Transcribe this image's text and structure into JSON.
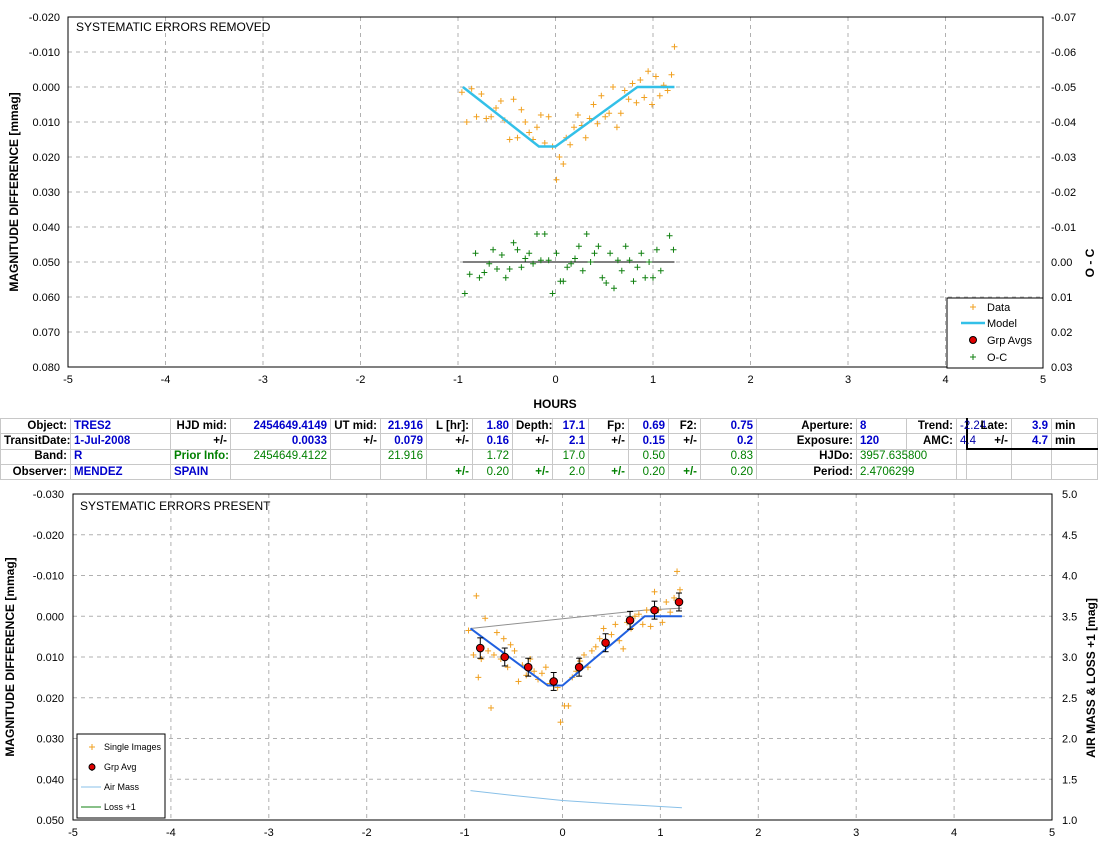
{
  "top_chart": {
    "title": "SYSTEMATIC ERRORS REMOVED",
    "ylabel": "MAGNITUDE DIFFERENCE [mmag]",
    "y2label": "O - C",
    "xlabel": "HOURS",
    "x_ticks": [
      "-5",
      "-4",
      "-3",
      "-2",
      "-1",
      "0",
      "1",
      "2",
      "3",
      "4",
      "5"
    ],
    "y_ticks": [
      "-0.020",
      "-0.010",
      "0.000",
      "0.010",
      "0.020",
      "0.030",
      "0.040",
      "0.050",
      "0.060",
      "0.070",
      "0.080"
    ],
    "y2_ticks": [
      "-0.07",
      "-0.06",
      "-0.05",
      "-0.04",
      "-0.03",
      "-0.02",
      "-0.01",
      "0.00",
      "0.01",
      "0.02",
      "0.03"
    ],
    "legend": [
      "Data",
      "Model",
      "Grp Avgs",
      "O-C"
    ]
  },
  "bottom_chart": {
    "title": "SYSTEMATIC ERRORS PRESENT",
    "ylabel": "MAGNITUDE DIFFERENCE [mmag]",
    "y2label": "AIR MASS & LOSS +1 [mag]",
    "x_ticks": [
      "-5",
      "-4",
      "-3",
      "-2",
      "-1",
      "0",
      "1",
      "2",
      "3",
      "4",
      "5"
    ],
    "y_ticks": [
      "-0.030",
      "-0.020",
      "-0.010",
      "0.000",
      "0.010",
      "0.020",
      "0.030",
      "0.040",
      "0.050"
    ],
    "y2_ticks": [
      "5.0",
      "4.5",
      "4.0",
      "3.5",
      "3.0",
      "2.5",
      "2.0",
      "1.5",
      "1.0"
    ],
    "legend": [
      "Single Images",
      "Grp Avg",
      "Air Mass",
      "Loss +1"
    ]
  },
  "colors": {
    "data": "#f0a020",
    "model": "#33c0e8",
    "model_bottom": "#2060e0",
    "oc": "#108010",
    "grp": "#e00000",
    "airmass": "#88c0e8",
    "loss": "#909090"
  },
  "info": {
    "r1": {
      "object_l": "Object:",
      "object_v": "TRES2",
      "hjd_l": "HJD mid:",
      "hjd_v": "2454649.4149",
      "ut_l": "UT mid:",
      "ut_v": "21.916",
      "lhr_l": "L [hr]:",
      "lhr_v": "1.80",
      "depth_l": "Depth:",
      "depth_v": "17.1",
      "fp_l": "Fp:",
      "fp_v": "0.69",
      "f2_l": "F2:",
      "f2_v": "0.75",
      "ap_l": "Aperture:",
      "ap_v": "8",
      "trend_l": "Trend:",
      "trend_v": "-2.24",
      "late_l": "Late:",
      "late_v": "3.9",
      "late_u": "min"
    },
    "r2": {
      "td_l": "TransitDate:",
      "td_v": "1-Jul-2008",
      "pm": "+/-",
      "hjd_e": "0.0033",
      "ut_e": "0.079",
      "lhr_e": "0.16",
      "depth_e": "2.1",
      "fp_e": "0.15",
      "f2_e": "0.2",
      "exp_l": "Exposure:",
      "exp_v": "120",
      "amc_l": "AMC:",
      "amc_v": "4.4",
      "late_e": "4.7",
      "late_u": "min"
    },
    "r3": {
      "band_l": "Band:",
      "band_v": "R",
      "prior_l": "Prior Info:",
      "prior_hjd": "2454649.4122",
      "prior_ut": "21.916",
      "prior_l_hr": "1.72",
      "prior_depth": "17.0",
      "prior_fp": "0.50",
      "prior_f2": "0.83",
      "hjdo_l": "HJDo:",
      "hjdo_v": "3957.635800"
    },
    "r4": {
      "obs_l": "Observer:",
      "obs_v": "MENDEZ",
      "obs_c": "SPAIN",
      "pm": "+/-",
      "lhr_pe": "0.20",
      "depth_pe": "2.0",
      "fp_pe": "0.20",
      "f2_pe": "0.20",
      "period_l": "Period:",
      "period_v": "2.4706299"
    }
  },
  "chart_data": [
    {
      "type": "scatter",
      "title": "SYSTEMATIC ERRORS REMOVED",
      "xlabel": "HOURS",
      "ylabel": "MAGNITUDE DIFFERENCE [mmag]",
      "y2label": "O - C",
      "xlim": [
        -5,
        5
      ],
      "ylim": [
        0.08,
        -0.02
      ],
      "y2lim": [
        0.03,
        -0.07
      ],
      "grid": true,
      "legend_position": "bottom-right",
      "series": [
        {
          "name": "Data",
          "points": [
            [
              -0.96,
              0.0015
            ],
            [
              -0.91,
              0.01
            ],
            [
              -0.86,
              0.0005
            ],
            [
              -0.81,
              0.0085
            ],
            [
              -0.76,
              0.002
            ],
            [
              -0.71,
              0.009
            ],
            [
              -0.66,
              0.0085
            ],
            [
              -0.61,
              0.006
            ],
            [
              -0.56,
              0.004
            ],
            [
              -0.52,
              0.0095
            ],
            [
              -0.47,
              0.015
            ],
            [
              -0.43,
              0.0035
            ],
            [
              -0.39,
              0.0145
            ],
            [
              -0.35,
              0.0065
            ],
            [
              -0.31,
              0.01
            ],
            [
              -0.27,
              0.013
            ],
            [
              -0.23,
              0.015
            ],
            [
              -0.19,
              0.0115
            ],
            [
              -0.15,
              0.008
            ],
            [
              -0.11,
              0.016
            ],
            [
              -0.07,
              0.0085
            ],
            [
              -0.03,
              0.017
            ],
            [
              0.01,
              0.0265
            ],
            [
              0.04,
              0.02
            ],
            [
              0.08,
              0.022
            ],
            [
              0.11,
              0.0145
            ],
            [
              0.15,
              0.0165
            ],
            [
              0.19,
              0.0115
            ],
            [
              0.23,
              0.008
            ],
            [
              0.27,
              0.011
            ],
            [
              0.31,
              0.0145
            ],
            [
              0.35,
              0.009
            ],
            [
              0.39,
              0.005
            ],
            [
              0.43,
              0.0105
            ],
            [
              0.47,
              0.0025
            ],
            [
              0.51,
              0.0085
            ],
            [
              0.55,
              0.0075
            ],
            [
              0.59,
              0.0
            ],
            [
              0.63,
              0.0115
            ],
            [
              0.67,
              0.0075
            ],
            [
              0.71,
              0.001
            ],
            [
              0.75,
              0.0035
            ],
            [
              0.79,
              -0.001
            ],
            [
              0.83,
              0.0045
            ],
            [
              0.87,
              -0.002
            ],
            [
              0.91,
              0.003
            ],
            [
              0.95,
              -0.0045
            ],
            [
              0.99,
              0.005
            ],
            [
              1.03,
              -0.003
            ],
            [
              1.07,
              0.0025
            ],
            [
              1.11,
              -0.0005
            ],
            [
              1.15,
              0.001
            ],
            [
              1.19,
              -0.0035
            ],
            [
              1.22,
              -0.0115
            ]
          ]
        },
        {
          "name": "Model",
          "points": [
            [
              -0.95,
              0.0
            ],
            [
              -0.17,
              0.017
            ],
            [
              0.0,
              0.017
            ],
            [
              0.84,
              0.0
            ],
            [
              1.22,
              0.0
            ]
          ]
        },
        {
          "name": "O-C",
          "points": [
            [
              -0.93,
              0.059
            ],
            [
              -0.88,
              0.0535
            ],
            [
              -0.82,
              0.0475
            ],
            [
              -0.78,
              0.0545
            ],
            [
              -0.73,
              0.053
            ],
            [
              -0.68,
              0.0505
            ],
            [
              -0.64,
              0.0465
            ],
            [
              -0.6,
              0.052
            ],
            [
              -0.55,
              0.048
            ],
            [
              -0.51,
              0.0545
            ],
            [
              -0.47,
              0.052
            ],
            [
              -0.43,
              0.0445
            ],
            [
              -0.39,
              0.0465
            ],
            [
              -0.35,
              0.0515
            ],
            [
              -0.31,
              0.049
            ],
            [
              -0.27,
              0.0475
            ],
            [
              -0.23,
              0.0505
            ],
            [
              -0.19,
              0.042
            ],
            [
              -0.15,
              0.0495
            ],
            [
              -0.11,
              0.042
            ],
            [
              -0.07,
              0.0495
            ],
            [
              -0.03,
              0.059
            ],
            [
              0.01,
              0.0475
            ],
            [
              0.05,
              0.0555
            ],
            [
              0.08,
              0.0555
            ],
            [
              0.12,
              0.0515
            ],
            [
              0.16,
              0.0505
            ],
            [
              0.2,
              0.049
            ],
            [
              0.24,
              0.0455
            ],
            [
              0.28,
              0.0525
            ],
            [
              0.32,
              0.042
            ],
            [
              0.36,
              0.05
            ],
            [
              0.4,
              0.0475
            ],
            [
              0.44,
              0.0455
            ],
            [
              0.48,
              0.0545
            ],
            [
              0.52,
              0.056
            ],
            [
              0.56,
              0.0475
            ],
            [
              0.6,
              0.0575
            ],
            [
              0.64,
              0.0495
            ],
            [
              0.68,
              0.0525
            ],
            [
              0.72,
              0.0455
            ],
            [
              0.76,
              0.0495
            ],
            [
              0.8,
              0.0555
            ],
            [
              0.84,
              0.0515
            ],
            [
              0.88,
              0.0475
            ],
            [
              0.92,
              0.0545
            ],
            [
              0.96,
              0.05
            ],
            [
              1.0,
              0.0545
            ],
            [
              1.04,
              0.0465
            ],
            [
              1.08,
              0.0525
            ],
            [
              1.17,
              0.0425
            ],
            [
              1.21,
              0.0465
            ]
          ]
        },
        {
          "name": "O-C zero line",
          "points": [
            [
              -0.95,
              0.05
            ],
            [
              1.22,
              0.05
            ]
          ]
        }
      ]
    },
    {
      "type": "scatter",
      "title": "SYSTEMATIC ERRORS PRESENT",
      "ylabel": "MAGNITUDE DIFFERENCE [mmag]",
      "y2label": "AIR MASS & LOSS +1 [mag]",
      "xlim": [
        -5,
        5
      ],
      "ylim": [
        0.05,
        -0.03
      ],
      "y2lim": [
        1.0,
        5.0
      ],
      "grid": true,
      "legend_position": "bottom-left",
      "series": [
        {
          "name": "Single Images",
          "points": [
            [
              -0.96,
              0.0035
            ],
            [
              -0.91,
              0.0095
            ],
            [
              -0.88,
              -0.005
            ],
            [
              -0.86,
              0.015
            ],
            [
              -0.83,
              0.0105
            ],
            [
              -0.79,
              0.0005
            ],
            [
              -0.76,
              0.0085
            ],
            [
              -0.73,
              0.0225
            ],
            [
              -0.7,
              0.0095
            ],
            [
              -0.67,
              0.004
            ],
            [
              -0.63,
              0.0105
            ],
            [
              -0.6,
              0.0055
            ],
            [
              -0.56,
              0.0125
            ],
            [
              -0.53,
              0.007
            ],
            [
              -0.49,
              0.0085
            ],
            [
              -0.45,
              0.016
            ],
            [
              -0.41,
              0.012
            ],
            [
              -0.37,
              0.0145
            ],
            [
              -0.33,
              0.0105
            ],
            [
              -0.29,
              0.0135
            ],
            [
              -0.25,
              0.0155
            ],
            [
              -0.21,
              0.014
            ],
            [
              -0.17,
              0.0125
            ],
            [
              -0.13,
              0.0165
            ],
            [
              -0.09,
              0.0155
            ],
            [
              -0.05,
              0.0175
            ],
            [
              -0.02,
              0.026
            ],
            [
              0.02,
              0.022
            ],
            [
              0.06,
              0.022
            ],
            [
              0.1,
              0.015
            ],
            [
              0.14,
              0.0135
            ],
            [
              0.18,
              0.011
            ],
            [
              0.22,
              0.0095
            ],
            [
              0.26,
              0.0125
            ],
            [
              0.3,
              0.0085
            ],
            [
              0.34,
              0.0075
            ],
            [
              0.38,
              0.0055
            ],
            [
              0.42,
              0.003
            ],
            [
              0.46,
              0.007
            ],
            [
              0.5,
              0.0045
            ],
            [
              0.54,
              0.002
            ],
            [
              0.58,
              0.006
            ],
            [
              0.62,
              0.008
            ],
            [
              0.66,
              0.0015
            ],
            [
              0.7,
              0.003
            ],
            [
              0.74,
              0.0
            ],
            [
              0.78,
              -0.0005
            ],
            [
              0.82,
              0.002
            ],
            [
              0.86,
              -0.0015
            ],
            [
              0.9,
              0.0025
            ],
            [
              0.94,
              -0.006
            ],
            [
              0.98,
              -0.0015
            ],
            [
              1.02,
              0.0015
            ],
            [
              1.06,
              -0.0035
            ],
            [
              1.1,
              -0.001
            ],
            [
              1.14,
              -0.0045
            ],
            [
              1.17,
              -0.011
            ],
            [
              1.2,
              -0.0065
            ]
          ]
        },
        {
          "name": "Grp Avg",
          "points": [
            [
              -0.84,
              0.0078,
              0.0025
            ],
            [
              -0.59,
              0.01,
              0.0022
            ],
            [
              -0.35,
              0.0125,
              0.0022
            ],
            [
              -0.09,
              0.016,
              0.0022
            ],
            [
              0.17,
              0.0125,
              0.0022
            ],
            [
              0.44,
              0.0065,
              0.0022
            ],
            [
              0.69,
              0.001,
              0.0022
            ],
            [
              0.94,
              -0.0015,
              0.0022
            ],
            [
              1.19,
              -0.0035,
              0.0022
            ]
          ]
        },
        {
          "name": "Model",
          "points": [
            [
              -0.94,
              0.003
            ],
            [
              -0.15,
              0.017
            ],
            [
              0.0,
              0.017
            ],
            [
              0.84,
              0.0
            ],
            [
              1.22,
              0.0
            ]
          ]
        },
        {
          "name": "Loss +1",
          "points": [
            [
              -0.94,
              0.003
            ],
            [
              0.84,
              -0.0015
            ],
            [
              1.22,
              -0.002
            ]
          ]
        },
        {
          "name": "Air Mass",
          "y_axis": "right",
          "points": [
            [
              -0.94,
              1.36
            ],
            [
              -0.5,
              1.3
            ],
            [
              0.0,
              1.24
            ],
            [
              0.5,
              1.2
            ],
            [
              1.22,
              1.15
            ]
          ]
        }
      ]
    }
  ]
}
